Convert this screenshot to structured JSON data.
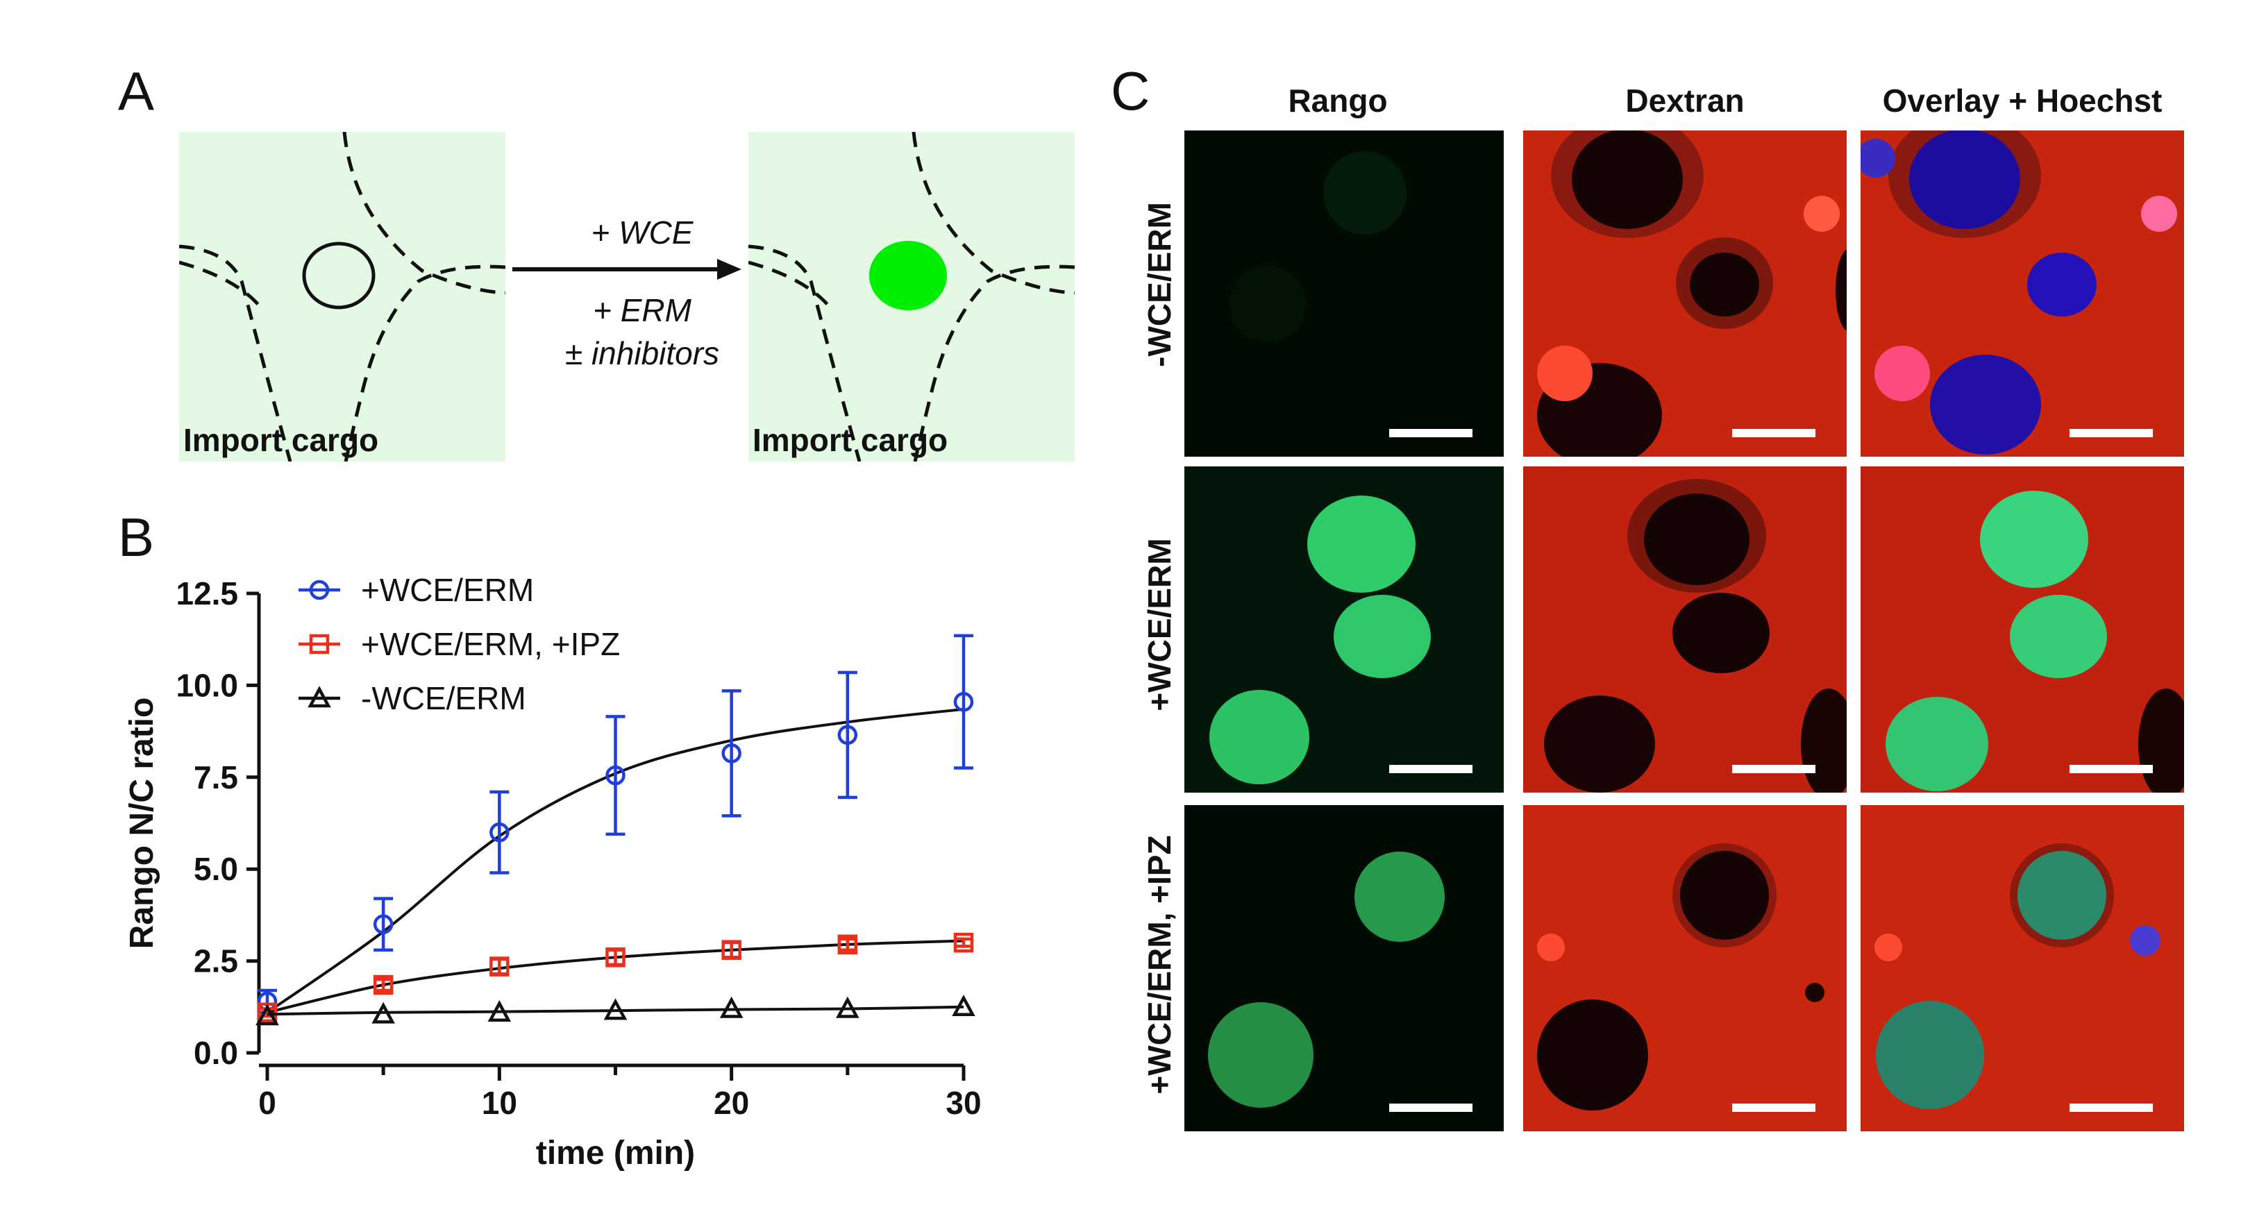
{
  "panel_a": {
    "letter": "A",
    "left_cargo_label": "Import cargo",
    "right_cargo_label": "Import cargo",
    "condition_top": "+ WCE",
    "condition_bottom_1": "+ ERM",
    "condition_bottom_2": "± inhibitors",
    "background_color": "#e3f9e3",
    "nucleus_color": "#00ee00"
  },
  "panel_b": {
    "letter": "B"
  },
  "panel_c": {
    "letter": "C",
    "columns": [
      "Rango",
      "Dextran",
      "Overlay + Hoechst"
    ],
    "rows": [
      "-WCE/ERM",
      "+WCE/ERM",
      "+WCE/ERM, +IPZ"
    ]
  },
  "chart_data": {
    "type": "line",
    "xlabel": "time (min)",
    "ylabel": "Rango N/C ratio",
    "xlim": [
      0,
      30
    ],
    "ylim": [
      0,
      12.5
    ],
    "xticks": [
      "0",
      "10",
      "20",
      "30"
    ],
    "yticks": [
      "0.0",
      "2.5",
      "5.0",
      "7.5",
      "10.0",
      "12.5"
    ],
    "x": [
      0,
      5,
      10,
      15,
      20,
      25,
      30
    ],
    "series": [
      {
        "name": "+WCE/ERM",
        "color": "#1f3fd8",
        "marker": "circle",
        "values": [
          1.4,
          3.5,
          6.0,
          7.55,
          8.15,
          8.65,
          9.55
        ],
        "errors": [
          0.3,
          0.7,
          1.1,
          1.6,
          1.7,
          1.7,
          1.8
        ],
        "fit": [
          1.1,
          3.3,
          5.9,
          7.6,
          8.5,
          9.0,
          9.35
        ]
      },
      {
        "name": "+WCE/ERM, +IPZ",
        "color": "#e8301c",
        "marker": "square",
        "values": [
          1.1,
          1.85,
          2.35,
          2.6,
          2.8,
          2.95,
          3.0
        ],
        "errors": [
          0.1,
          0.15,
          0.2,
          0.2,
          0.2,
          0.15,
          0.1
        ],
        "fit": [
          1.1,
          1.85,
          2.3,
          2.6,
          2.8,
          2.95,
          3.05
        ]
      },
      {
        "name": "-WCE/ERM",
        "color": "#111111",
        "marker": "triangle",
        "values": [
          1.0,
          1.05,
          1.1,
          1.15,
          1.2,
          1.2,
          1.25
        ],
        "errors": [
          0,
          0,
          0,
          0,
          0,
          0,
          0
        ],
        "fit": [
          1.05,
          1.1,
          1.12,
          1.15,
          1.18,
          1.2,
          1.25
        ]
      }
    ],
    "legend_position": "top-left"
  }
}
